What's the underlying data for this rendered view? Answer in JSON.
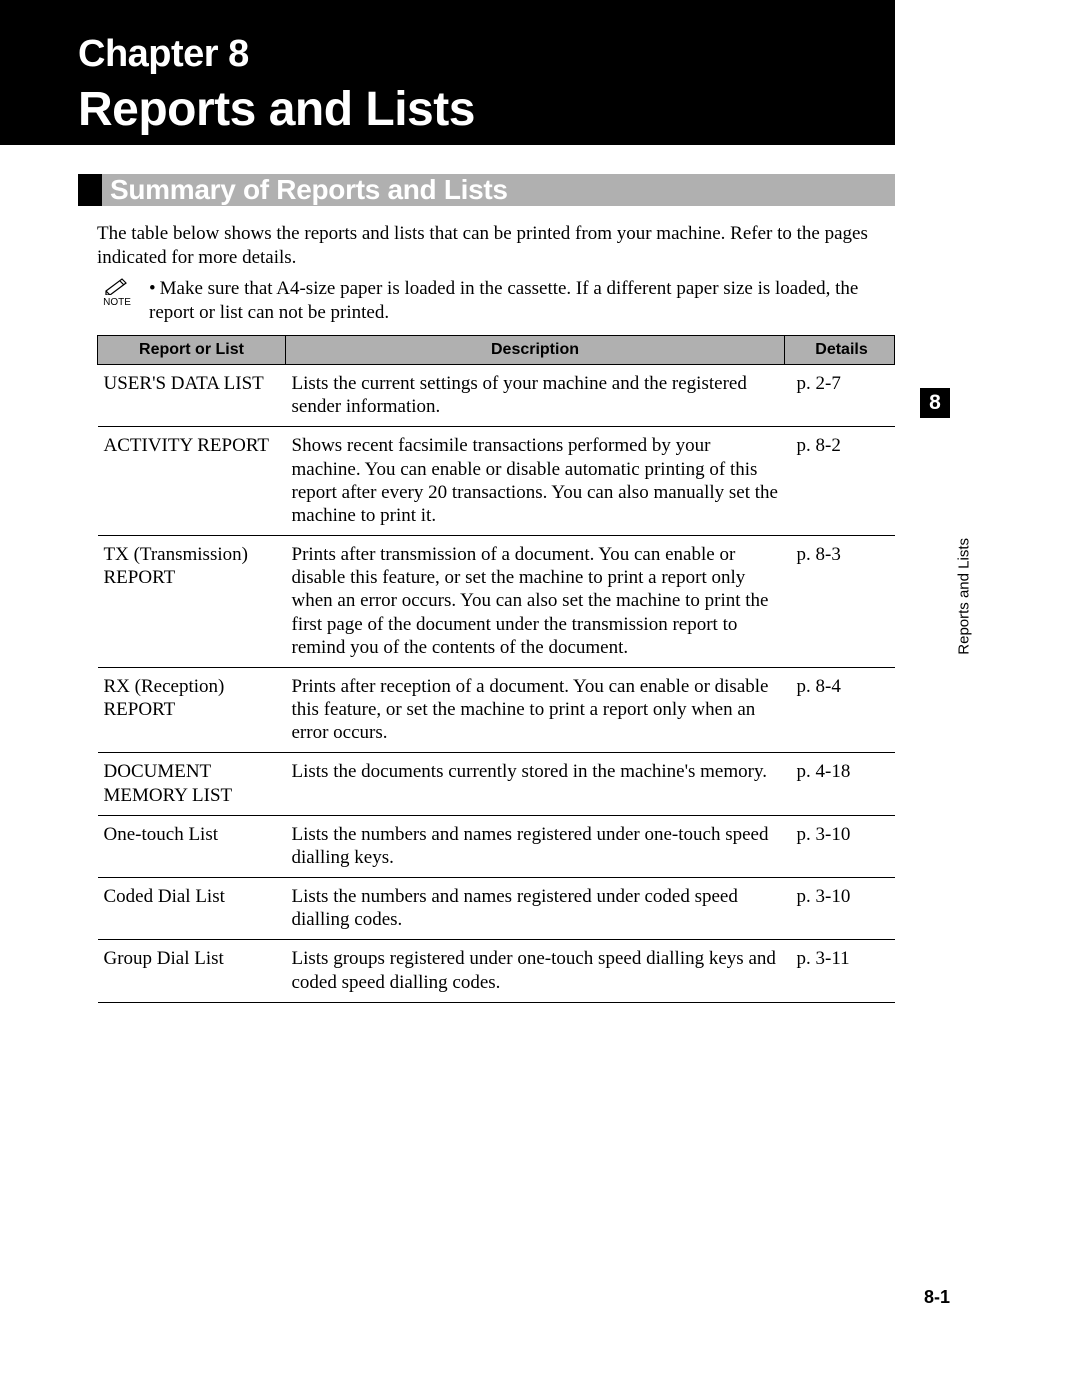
{
  "header": {
    "chapter_label": "Chapter 8",
    "chapter_title": "Reports and Lists"
  },
  "section": {
    "title": "Summary of Reports and Lists",
    "intro": "The table below shows the reports and lists that can be printed from your machine. Refer to the pages indicated for more details."
  },
  "note": {
    "label": "NOTE",
    "bullet": "•",
    "text": "Make sure that A4-size paper is loaded in the cassette. If a different paper size is loaded, the report or list can not be printed."
  },
  "table": {
    "columns": [
      "Report or List",
      "Description",
      "Details"
    ],
    "rows": [
      {
        "name": "USER'S DATA LIST",
        "description": "Lists the current settings of your machine and the registered sender information.",
        "details": "p. 2-7"
      },
      {
        "name": "ACTIVITY REPORT",
        "description": "Shows recent facsimile transactions performed by your machine. You can enable or disable automatic printing of this report after every 20 transactions. You can also manually set the machine to print it.",
        "details": "p. 8-2"
      },
      {
        "name": "TX (Transmission) REPORT",
        "description": "Prints after transmission of a document. You can enable or disable this feature, or set the machine to print a report only when an error occurs. You can also set the machine to print the first page of the document under the transmission report to remind you of the contents of the document.",
        "details": "p. 8-3"
      },
      {
        "name": "RX (Reception) REPORT",
        "description": "Prints after reception of a document. You can enable or disable this feature, or set the machine to print a report only when an error occurs.",
        "details": "p. 8-4"
      },
      {
        "name": "DOCUMENT MEMORY LIST",
        "description": "Lists the documents currently stored in the machine's memory.",
        "details": "p. 4-18"
      },
      {
        "name": "One-touch List",
        "description": "Lists the numbers and names registered under one-touch speed dialling keys.",
        "details": "p. 3-10"
      },
      {
        "name": "Coded Dial List",
        "description": "Lists the numbers and names registered under coded speed dialling codes.",
        "details": "p. 3-10"
      },
      {
        "name": "Group Dial List",
        "description": "Lists groups registered under one-touch speed dialling keys and coded speed dialling codes.",
        "details": "p. 3-11"
      }
    ]
  },
  "side": {
    "chapter_num": "8",
    "label": "Reports and Lists"
  },
  "page_number": "8-1",
  "colors": {
    "black": "#000000",
    "header_gray": "#b0b0b0",
    "white": "#ffffff"
  }
}
